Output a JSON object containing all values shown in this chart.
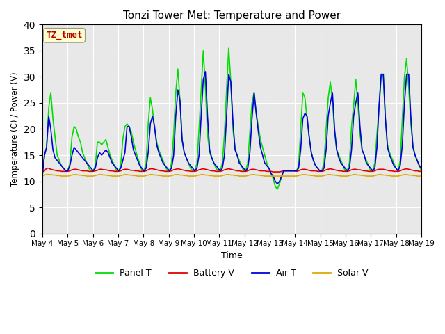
{
  "title": "Tonzi Tower Met: Temperature and Power",
  "xlabel": "Time",
  "ylabel": "Temperature (C) / Power (V)",
  "ylim": [
    0,
    40
  ],
  "yticks": [
    0,
    5,
    10,
    15,
    20,
    25,
    30,
    35,
    40
  ],
  "x_labels": [
    "May 4",
    "May 5",
    "May 6",
    "May 7",
    "May 8",
    "May 9",
    "May 10",
    "May 11",
    "May 12",
    "May 13",
    "May 14",
    "May 15",
    "May 16",
    "May 17",
    "May 18",
    "May 19"
  ],
  "annotation_text": "TZ_tmet",
  "annotation_color": "#bb0000",
  "annotation_bg": "#ffffcc",
  "bg_color": "#e8e8e8",
  "panel_color": "#00dd00",
  "battery_color": "#dd0000",
  "air_color": "#0000dd",
  "solar_color": "#ddaa00",
  "panel_label": "Panel T",
  "battery_label": "Battery V",
  "air_label": "Air T",
  "solar_label": "Solar V",
  "panel_t": [
    12.0,
    15.0,
    16.5,
    24.0,
    27.0,
    22.0,
    18.5,
    15.0,
    14.0,
    13.0,
    12.5,
    12.0,
    12.0,
    13.5,
    18.5,
    20.5,
    20.0,
    18.5,
    17.5,
    15.5,
    14.5,
    13.5,
    12.5,
    12.0,
    12.0,
    13.0,
    17.5,
    17.5,
    17.0,
    17.5,
    18.0,
    16.5,
    15.0,
    14.0,
    13.0,
    12.0,
    12.0,
    13.0,
    18.0,
    20.5,
    21.0,
    20.5,
    19.5,
    17.5,
    16.0,
    14.5,
    13.5,
    12.0,
    12.0,
    13.5,
    21.0,
    26.0,
    23.8,
    20.0,
    17.5,
    16.0,
    15.0,
    14.0,
    13.0,
    12.0,
    12.0,
    13.5,
    19.0,
    27.0,
    31.5,
    25.5,
    18.0,
    15.5,
    14.5,
    13.5,
    12.5,
    12.0,
    12.0,
    13.5,
    20.0,
    27.5,
    35.0,
    28.0,
    19.0,
    15.5,
    14.5,
    13.5,
    12.5,
    12.0,
    12.0,
    13.5,
    19.0,
    27.5,
    35.5,
    29.0,
    20.0,
    16.5,
    15.0,
    14.0,
    13.0,
    12.0,
    12.0,
    13.5,
    19.5,
    25.0,
    27.0,
    23.0,
    20.5,
    18.0,
    16.5,
    15.0,
    13.5,
    12.5,
    11.5,
    10.5,
    9.0,
    8.5,
    9.5,
    11.0,
    12.0,
    12.0,
    12.0,
    12.0,
    12.0,
    12.0,
    12.0,
    13.0,
    20.0,
    27.0,
    26.0,
    22.0,
    18.5,
    15.5,
    14.0,
    13.0,
    12.5,
    12.0,
    12.0,
    13.5,
    20.0,
    26.0,
    29.0,
    25.5,
    19.5,
    16.0,
    15.0,
    14.0,
    13.0,
    12.0,
    12.0,
    13.5,
    20.5,
    24.5,
    29.5,
    25.0,
    19.0,
    16.0,
    15.0,
    14.0,
    13.0,
    12.0,
    12.0,
    13.5,
    19.0,
    24.0,
    30.0,
    30.5,
    22.0,
    17.0,
    15.5,
    14.5,
    13.5,
    12.5,
    12.0,
    14.0,
    22.0,
    30.0,
    33.5,
    28.0,
    21.0,
    17.0,
    15.0,
    14.0,
    13.0,
    12.0
  ],
  "battery_v": [
    11.8,
    12.0,
    12.5,
    12.5,
    12.3,
    12.2,
    12.1,
    12.0,
    12.0,
    11.9,
    11.9,
    11.9,
    11.9,
    12.0,
    12.2,
    12.3,
    12.3,
    12.2,
    12.1,
    12.0,
    12.0,
    12.0,
    11.9,
    11.9,
    11.9,
    12.0,
    12.1,
    12.3,
    12.3,
    12.2,
    12.2,
    12.1,
    12.0,
    12.0,
    11.9,
    11.9,
    11.9,
    12.0,
    12.2,
    12.3,
    12.3,
    12.2,
    12.1,
    12.1,
    12.0,
    12.0,
    11.9,
    11.9,
    11.9,
    12.0,
    12.2,
    12.4,
    12.4,
    12.3,
    12.2,
    12.1,
    12.0,
    12.0,
    11.9,
    11.9,
    11.9,
    12.0,
    12.2,
    12.3,
    12.4,
    12.3,
    12.2,
    12.1,
    12.0,
    12.0,
    11.9,
    11.9,
    11.9,
    12.0,
    12.2,
    12.3,
    12.4,
    12.3,
    12.2,
    12.1,
    12.0,
    12.0,
    11.9,
    11.9,
    11.9,
    12.0,
    12.2,
    12.3,
    12.4,
    12.3,
    12.2,
    12.1,
    12.0,
    12.0,
    11.9,
    11.9,
    11.9,
    12.0,
    12.2,
    12.3,
    12.3,
    12.2,
    12.1,
    12.0,
    12.0,
    12.0,
    11.9,
    11.9,
    11.9,
    11.8,
    11.8,
    11.8,
    11.8,
    11.9,
    12.0,
    12.0,
    12.0,
    12.0,
    12.0,
    12.0,
    11.9,
    12.0,
    12.2,
    12.3,
    12.3,
    12.2,
    12.1,
    12.0,
    12.0,
    12.0,
    11.9,
    11.9,
    11.9,
    12.0,
    12.2,
    12.3,
    12.4,
    12.3,
    12.2,
    12.1,
    12.0,
    12.0,
    11.9,
    11.9,
    11.9,
    12.0,
    12.2,
    12.3,
    12.3,
    12.2,
    12.2,
    12.1,
    12.0,
    12.0,
    11.9,
    11.9,
    11.9,
    12.0,
    12.2,
    12.3,
    12.3,
    12.3,
    12.2,
    12.1,
    12.0,
    12.0,
    11.9,
    11.9,
    11.9,
    12.0,
    12.2,
    12.3,
    12.4,
    12.3,
    12.2,
    12.1,
    12.0,
    12.0,
    11.9,
    11.9
  ],
  "air_t": [
    11.0,
    15.0,
    16.5,
    22.5,
    20.0,
    16.0,
    14.5,
    14.0,
    13.5,
    13.0,
    12.5,
    12.0,
    12.0,
    13.0,
    15.0,
    16.5,
    16.0,
    15.5,
    15.0,
    14.5,
    14.0,
    13.5,
    13.0,
    12.5,
    12.0,
    12.5,
    14.5,
    15.5,
    15.0,
    15.5,
    16.0,
    15.5,
    14.5,
    13.5,
    13.0,
    12.5,
    12.0,
    12.5,
    14.0,
    15.5,
    20.5,
    20.5,
    18.5,
    16.0,
    15.0,
    14.0,
    13.0,
    12.5,
    12.0,
    12.5,
    15.5,
    21.0,
    22.5,
    20.5,
    17.0,
    15.5,
    14.5,
    13.5,
    13.0,
    12.5,
    12.0,
    12.5,
    15.0,
    22.5,
    27.5,
    25.5,
    18.0,
    15.5,
    14.5,
    13.5,
    13.0,
    12.5,
    12.0,
    12.5,
    15.0,
    22.5,
    29.5,
    31.0,
    22.5,
    16.0,
    14.5,
    13.5,
    13.0,
    12.5,
    12.0,
    12.5,
    15.0,
    22.5,
    30.5,
    29.0,
    21.5,
    16.0,
    15.0,
    13.5,
    13.0,
    12.5,
    12.0,
    12.5,
    15.5,
    22.0,
    27.0,
    23.0,
    19.5,
    16.5,
    15.0,
    13.5,
    13.0,
    12.5,
    11.5,
    11.0,
    10.0,
    9.5,
    10.0,
    11.0,
    12.0,
    12.0,
    12.0,
    12.0,
    12.0,
    12.0,
    12.0,
    12.5,
    16.0,
    22.0,
    23.0,
    22.5,
    18.5,
    15.5,
    14.0,
    13.0,
    12.5,
    12.0,
    12.0,
    12.5,
    16.0,
    22.5,
    25.0,
    27.0,
    20.0,
    16.0,
    14.5,
    13.5,
    13.0,
    12.5,
    12.0,
    12.5,
    16.0,
    22.5,
    25.0,
    27.0,
    20.5,
    16.0,
    15.0,
    13.5,
    13.0,
    12.5,
    12.0,
    12.5,
    16.5,
    24.5,
    30.5,
    30.5,
    22.0,
    16.5,
    15.0,
    14.0,
    13.0,
    12.5,
    12.0,
    13.0,
    17.0,
    25.0,
    30.5,
    30.5,
    22.5,
    16.5,
    15.0,
    14.0,
    13.0,
    12.5
  ],
  "solar_v": [
    11.0,
    11.2,
    11.3,
    11.3,
    11.3,
    11.2,
    11.2,
    11.1,
    11.1,
    11.0,
    11.0,
    11.0,
    11.0,
    11.1,
    11.2,
    11.3,
    11.3,
    11.2,
    11.2,
    11.1,
    11.1,
    11.0,
    11.0,
    11.0,
    11.0,
    11.1,
    11.2,
    11.3,
    11.3,
    11.2,
    11.2,
    11.1,
    11.1,
    11.0,
    11.0,
    11.0,
    11.0,
    11.1,
    11.2,
    11.3,
    11.3,
    11.2,
    11.2,
    11.1,
    11.1,
    11.0,
    11.0,
    11.0,
    11.0,
    11.1,
    11.2,
    11.3,
    11.3,
    11.2,
    11.2,
    11.1,
    11.1,
    11.0,
    11.0,
    11.0,
    11.0,
    11.1,
    11.2,
    11.3,
    11.3,
    11.2,
    11.2,
    11.1,
    11.1,
    11.0,
    11.0,
    11.0,
    11.0,
    11.1,
    11.2,
    11.3,
    11.3,
    11.2,
    11.2,
    11.1,
    11.1,
    11.0,
    11.0,
    11.0,
    11.0,
    11.1,
    11.2,
    11.3,
    11.3,
    11.2,
    11.2,
    11.1,
    11.1,
    11.0,
    11.0,
    11.0,
    11.0,
    11.1,
    11.2,
    11.3,
    11.3,
    11.2,
    11.2,
    11.1,
    11.1,
    11.0,
    11.0,
    11.0,
    11.0,
    11.0,
    11.0,
    11.0,
    11.0,
    11.0,
    11.0,
    11.0,
    11.0,
    11.0,
    11.0,
    11.0,
    11.0,
    11.1,
    11.2,
    11.3,
    11.3,
    11.2,
    11.2,
    11.1,
    11.1,
    11.0,
    11.0,
    11.0,
    11.0,
    11.1,
    11.2,
    11.3,
    11.3,
    11.2,
    11.2,
    11.1,
    11.1,
    11.0,
    11.0,
    11.0,
    11.0,
    11.1,
    11.2,
    11.3,
    11.3,
    11.2,
    11.2,
    11.1,
    11.1,
    11.0,
    11.0,
    11.0,
    11.0,
    11.1,
    11.2,
    11.3,
    11.3,
    11.2,
    11.2,
    11.1,
    11.1,
    11.0,
    11.0,
    11.0,
    11.0,
    11.1,
    11.2,
    11.3,
    11.3,
    11.2,
    11.2,
    11.1,
    11.1,
    11.0,
    11.0,
    11.0
  ]
}
